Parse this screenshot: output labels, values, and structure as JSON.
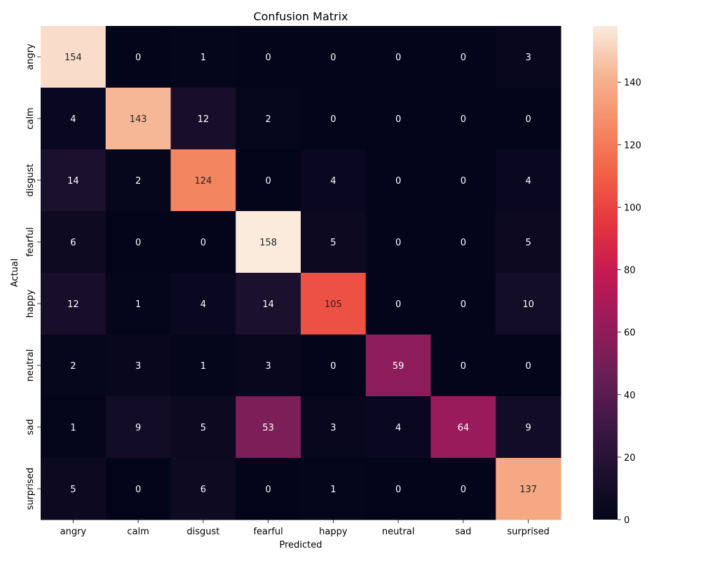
{
  "chart_data": {
    "type": "heatmap",
    "title": "Confusion Matrix",
    "xlabel": "Predicted",
    "ylabel": "Actual",
    "x_categories": [
      "angry",
      "calm",
      "disgust",
      "fearful",
      "happy",
      "neutral",
      "sad",
      "surprised"
    ],
    "y_categories": [
      "angry",
      "calm",
      "disgust",
      "fearful",
      "happy",
      "neutral",
      "sad",
      "surprised"
    ],
    "values": [
      [
        154,
        0,
        1,
        0,
        0,
        0,
        0,
        3
      ],
      [
        4,
        143,
        12,
        2,
        0,
        0,
        0,
        0
      ],
      [
        14,
        2,
        124,
        0,
        4,
        0,
        0,
        4
      ],
      [
        6,
        0,
        0,
        158,
        5,
        0,
        0,
        5
      ],
      [
        12,
        1,
        4,
        14,
        105,
        0,
        0,
        10
      ],
      [
        2,
        3,
        1,
        3,
        0,
        59,
        0,
        0
      ],
      [
        1,
        9,
        5,
        53,
        3,
        4,
        64,
        9
      ],
      [
        5,
        0,
        6,
        0,
        1,
        0,
        0,
        137
      ]
    ],
    "colorbar": {
      "min": 0,
      "max": 158,
      "ticks": [
        0,
        20,
        40,
        60,
        80,
        100,
        120,
        140
      ]
    },
    "colormap": "rocket",
    "grid": false
  }
}
